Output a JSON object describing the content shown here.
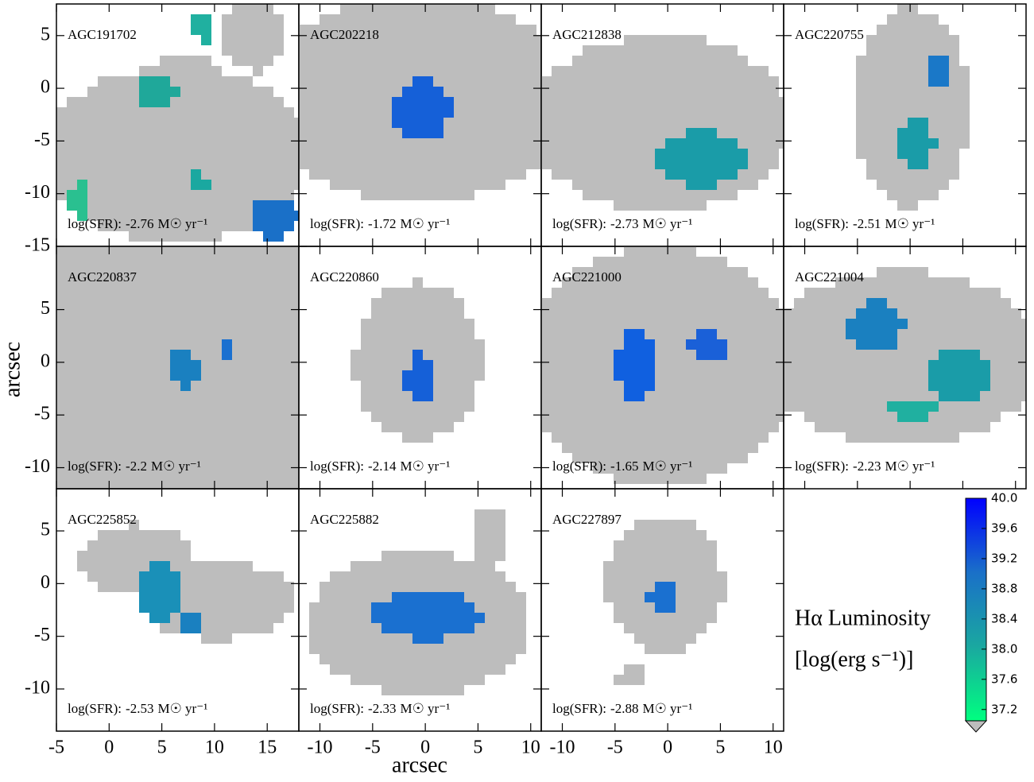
{
  "chart_data": {
    "type": "image",
    "x_label": "arcsec",
    "y_label": "arcsec",
    "sfr_prefix": "log(SFR):",
    "sfr_unit": "M☉ yr⁻¹",
    "rows": [
      {
        "ylim": [
          -15,
          8
        ],
        "yticks": [
          5,
          0,
          -5,
          -10,
          -15
        ]
      },
      {
        "ylim": [
          -12,
          11
        ],
        "yticks": [
          5,
          0,
          -5,
          -10
        ]
      },
      {
        "ylim": [
          -14,
          9
        ],
        "yticks": [
          5,
          0,
          -5,
          -10
        ]
      }
    ],
    "cols": [
      {
        "xlim": [
          -5,
          18
        ],
        "xticks": [
          -5,
          0,
          5,
          10,
          15
        ]
      },
      {
        "xlim": [
          -12,
          11
        ],
        "xticks": [
          -10,
          -5,
          0,
          5,
          10
        ]
      },
      {
        "xlim": [
          -12,
          11
        ],
        "xticks": [
          -10,
          -5,
          0,
          5,
          10
        ]
      }
    ],
    "panels": [
      {
        "name": "AGC191702",
        "sfr": -2.76
      },
      {
        "name": "AGC202218",
        "sfr": -1.72
      },
      {
        "name": "AGC212838",
        "sfr": -2.73
      },
      {
        "name": "AGC220755",
        "sfr": -2.51
      },
      {
        "name": "AGC220837",
        "sfr": -2.2
      },
      {
        "name": "AGC220860",
        "sfr": -2.14
      },
      {
        "name": "AGC221000",
        "sfr": -1.65
      },
      {
        "name": "AGC221004",
        "sfr": -2.23
      },
      {
        "name": "AGC225852",
        "sfr": -2.53
      },
      {
        "name": "AGC225882",
        "sfr": -2.33
      },
      {
        "name": "AGC227897",
        "sfr": -2.88
      }
    ],
    "colorbar": {
      "label_line1": "Hα Luminosity",
      "label_line2": "[log(erg s⁻¹)]",
      "lim": [
        37.05,
        40
      ],
      "ticks": [
        {
          "value": 40,
          "label": "40.0"
        },
        39.6,
        39.2,
        38.8,
        38.4,
        {
          "value": 38,
          "label": "38.0"
        },
        37.6,
        37.2
      ],
      "colors": [
        "#00ff80",
        "#1aa8a0",
        "#1a70c8",
        "#0000ff"
      ]
    }
  }
}
